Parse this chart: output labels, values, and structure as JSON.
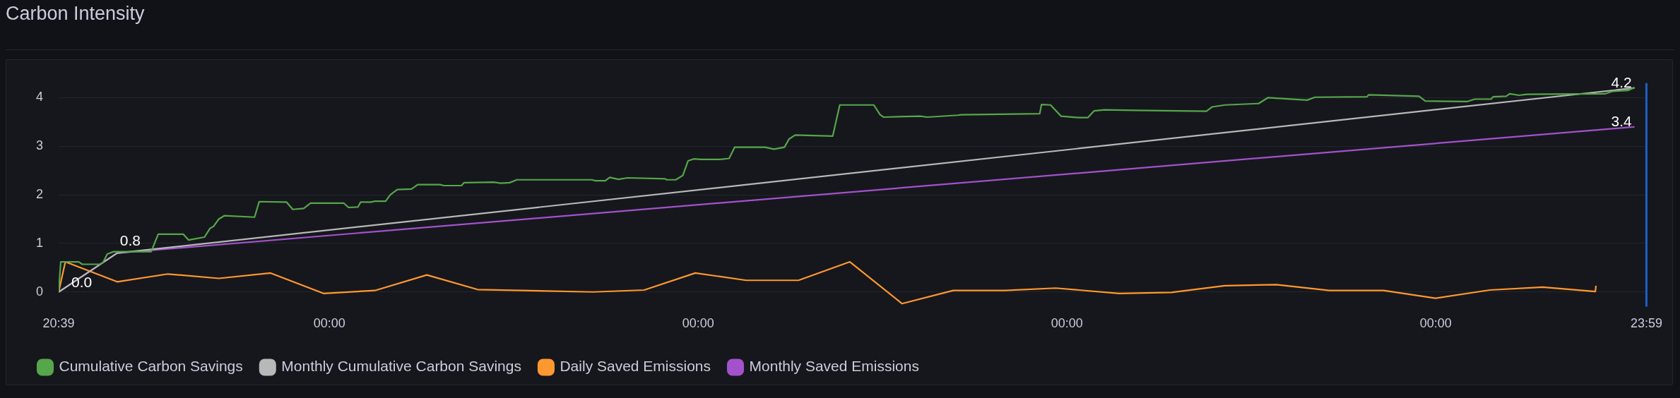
{
  "chart_data": {
    "type": "line",
    "title": "Carbon Intensity",
    "xlim": [
      "--01-01T20:39",
      "--01-31T23:59"
    ],
    "xticks": [
      {
        "value": "--01-01T20:39",
        "label": "20:39"
      },
      {
        "value": "--01-07T00:00",
        "label": "00:00"
      },
      {
        "value": "--01-14T00:00",
        "label": "00:00"
      },
      {
        "value": "--01-21T00:00",
        "label": "00:00"
      },
      {
        "value": "--01-28T00:00",
        "label": "00:00"
      },
      {
        "value": "--01-31T23:59",
        "label": "23:59"
      }
    ],
    "ylim": [
      -0.3,
      4.3
    ],
    "yticks": [
      0,
      1,
      2,
      3,
      4
    ],
    "grid": "y",
    "legend": "bottom left",
    "ref_lines": [
      {
        "axis": "x",
        "value": "--01-31T23:59",
        "color": "#1f60c4"
      }
    ],
    "series": [
      {
        "name": "Cumulative Carbon Savings",
        "color": "#56a64b",
        "x": [
          "--01-01T20:39",
          "--01-01T21:36",
          "--01-02T05:48",
          "--01-02T07:24",
          "--01-02T15:12",
          "--01-02T16:48",
          "--01-02T18:48",
          "--01-02T21:42",
          "--01-03T14:48",
          "--01-03T18:00",
          "--01-04T05:24",
          "--01-04T07:48",
          "--01-04T15:06",
          "--01-04T17:36",
          "--01-04T19:12",
          "--01-04T21:36",
          "--01-05T00:06",
          "--01-05T13:54",
          "--01-05T16:00",
          "--01-06T04:30",
          "--01-06T07:18",
          "--01-06T12:18",
          "--01-06T15:24",
          "--01-07T06:30",
          "--01-07T08:42",
          "--01-07T13:00",
          "--01-07T14:12",
          "--01-07T19:06",
          "--01-07T20:42",
          "--01-08T01:36",
          "--01-08T03:42",
          "--01-08T06:54",
          "--01-08T13:24",
          "--01-08T16:12",
          "--01-09T02:24",
          "--01-09T04:06",
          "--01-09T12:12",
          "--01-09T13:18",
          "--01-10T02:48",
          "--01-10T06:06",
          "--01-10T10:06",
          "--01-10T13:24",
          "--01-11T23:30",
          "--01-12T01:12",
          "--01-12T05:42",
          "--01-12T07:42",
          "--01-12T11:42",
          "--01-12T15:48",
          "--01-13T08:54",
          "--01-13T09:42",
          "--01-13T13:48",
          "--01-13T17:00",
          "--01-13T19:24",
          "--01-13T21:54",
          "--01-14T01:06",
          "--01-14T10:06",
          "--01-14T14:06",
          "--01-14T16:36",
          "--01-15T06:24",
          "--01-15T10:30",
          "--01-15T15:18",
          "--01-15T17:24",
          "--01-15T20:12",
          "--01-16T13:18",
          "--01-16T16:30",
          "--01-17T08:00",
          "--01-17T10:54",
          "--01-17T12:24",
          "--01-18T05:06",
          "--01-18T08:24",
          "--01-18T22:12",
          "--01-18T23:48",
          "--01-20T11:36",
          "--01-20T12:24",
          "--01-20T16:30",
          "--01-20T21:18",
          "--01-21T05:30",
          "--01-21T09:30",
          "--01-21T12:24",
          "--01-21T17:00",
          "--01-22T07:18",
          "--01-23T15:30",
          "--01-23T18:06",
          "--01-24T00:00",
          "--01-24T15:18",
          "--01-24T19:30",
          "--01-25T13:24",
          "--01-25T17:00",
          "--01-26T16:42",
          "--01-26T17:24",
          "--01-27T16:24",
          "--01-27T19:18",
          "--01-28T14:12",
          "--01-28T17:48",
          "--01-29T01:12",
          "--01-29T02:12",
          "--01-29T08:06",
          "--01-29T09:42",
          "--01-29T13:54",
          "--01-29T17:36",
          "--01-31T05:00",
          "--01-31T08:30",
          "--01-31T15:30",
          "--01-31T18:36"
        ],
        "values": [
          0,
          0.62,
          0.62,
          0.57,
          0.57,
          0.6,
          0.78,
          0.83,
          0.83,
          1.19,
          1.19,
          1.07,
          1.13,
          1.31,
          1.35,
          1.5,
          1.57,
          1.54,
          1.86,
          1.85,
          1.7,
          1.72,
          1.83,
          1.83,
          1.74,
          1.75,
          1.85,
          1.85,
          1.87,
          1.87,
          2.0,
          2.11,
          2.12,
          2.21,
          2.21,
          2.19,
          2.19,
          2.25,
          2.26,
          2.24,
          2.25,
          2.31,
          2.31,
          2.29,
          2.29,
          2.36,
          2.32,
          2.35,
          2.33,
          2.31,
          2.31,
          2.4,
          2.7,
          2.74,
          2.73,
          2.73,
          2.75,
          2.98,
          2.98,
          2.94,
          2.98,
          3.15,
          3.23,
          3.21,
          3.85,
          3.85,
          3.65,
          3.6,
          3.62,
          3.6,
          3.64,
          3.65,
          3.67,
          3.86,
          3.85,
          3.62,
          3.59,
          3.59,
          3.73,
          3.75,
          3.74,
          3.72,
          3.81,
          3.85,
          3.88,
          4.0,
          3.95,
          4.01,
          4.02,
          4.06,
          4.03,
          3.93,
          3.92,
          3.97,
          3.97,
          4.02,
          4.03,
          4.08,
          4.05,
          4.07,
          4.08,
          4.13,
          4.15,
          4.21
        ]
      },
      {
        "name": "Monthly Cumulative Carbon Savings",
        "color": "#b8b8b8",
        "x": [
          "--01-01T20:39",
          "--01-02T23:18",
          "--01-31T18:36"
        ],
        "values": [
          0,
          0.8,
          4.2
        ],
        "value_labels": [
          "0.0",
          "0.8",
          "4.2"
        ]
      },
      {
        "name": "Daily Saved Emissions",
        "color": "#ff9830",
        "x": [
          "--01-01T20:39",
          "--01-01T23:42",
          "--01-02T23:18",
          "--01-03T22:24",
          "--01-04T21:36",
          "--01-05T21:12",
          "--01-06T21:18",
          "--01-07T20:42",
          "--01-08T20:24",
          "--01-09T19:30",
          "--01-12T00:00",
          "--01-12T23:24",
          "--01-13T22:42",
          "--01-14T21:54",
          "--01-15T21:42",
          "--01-16T21:06",
          "--01-17T20:54",
          "--01-18T20:12",
          "--01-19T19:42",
          "--01-20T18:54",
          "--01-21T23:48",
          "--01-22T23:36",
          "--01-23T23:54",
          "--01-24T23:24",
          "--01-25T23:30",
          "--01-27T00:12",
          "--01-27T23:54",
          "--01-29T00:36",
          "--01-30T00:42",
          "--01-31T00:42",
          "--01-31T01:00"
        ],
        "values": [
          0,
          0.62,
          0.21,
          0.37,
          0.28,
          0.39,
          -0.03,
          0.03,
          0.35,
          0.05,
          0,
          0.04,
          0.39,
          0.24,
          0.24,
          0.62,
          -0.24,
          0.03,
          0.03,
          0.08,
          -0.03,
          -0.01,
          0.13,
          0.15,
          0.03,
          0.03,
          -0.13,
          0.04,
          0.1,
          0.01,
          0.13
        ]
      },
      {
        "name": "Monthly Saved Emissions",
        "color": "#a352cc",
        "x": [
          "--01-01T20:39",
          "--01-02T23:18",
          "--01-31T18:36"
        ],
        "values": [
          0,
          0.8,
          3.4
        ],
        "value_labels": [
          null,
          null,
          "3.4"
        ]
      }
    ]
  }
}
